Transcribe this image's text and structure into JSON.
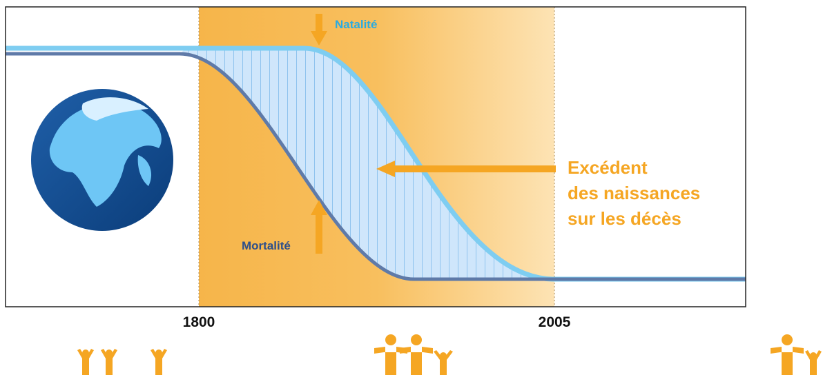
{
  "labels": {
    "natality": "Natalité",
    "mortality": "Mortalité",
    "surplus": [
      "Excédent",
      "des naissances",
      "sur les décès"
    ]
  },
  "axis": {
    "start": "1800",
    "end": "2005"
  }
}
